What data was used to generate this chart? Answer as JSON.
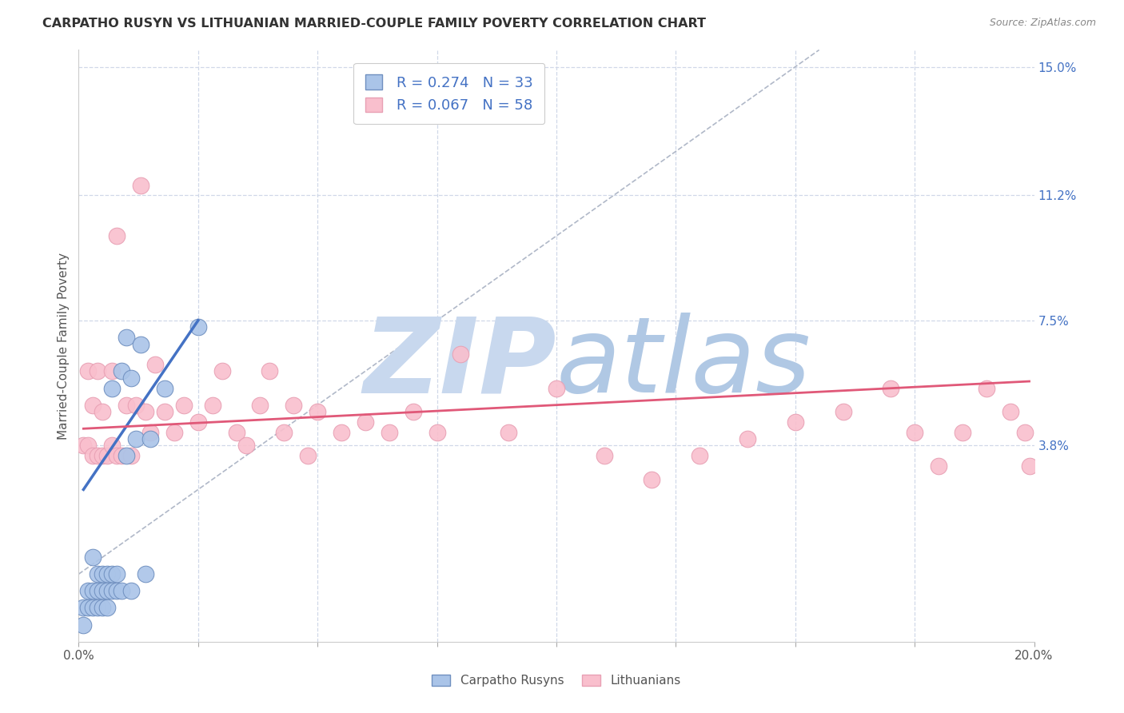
{
  "title": "CARPATHO RUSYN VS LITHUANIAN MARRIED-COUPLE FAMILY POVERTY CORRELATION CHART",
  "source": "Source: ZipAtlas.com",
  "ylabel": "Married-Couple Family Poverty",
  "xlim": [
    0.0,
    0.2
  ],
  "ylim": [
    -0.02,
    0.155
  ],
  "ytick_positions": [
    0.038,
    0.075,
    0.112,
    0.15
  ],
  "ytick_labels": [
    "3.8%",
    "7.5%",
    "11.2%",
    "15.0%"
  ],
  "color_rusyn": "#aac4e8",
  "color_lithuanian": "#f9bfcd",
  "color_rusyn_line": "#4472c4",
  "color_lithuanian_line": "#e05878",
  "watermark": "ZIPatlas",
  "watermark_color_zip": "#c5d9f0",
  "watermark_color_atlas": "#b8cfe8",
  "grid_color": "#d0d8e8",
  "rusyn_x": [
    0.001,
    0.001,
    0.002,
    0.002,
    0.003,
    0.003,
    0.003,
    0.004,
    0.004,
    0.004,
    0.005,
    0.005,
    0.005,
    0.006,
    0.006,
    0.006,
    0.007,
    0.007,
    0.007,
    0.008,
    0.008,
    0.009,
    0.009,
    0.01,
    0.01,
    0.011,
    0.011,
    0.012,
    0.013,
    0.014,
    0.015,
    0.018,
    0.025
  ],
  "rusyn_y": [
    -0.01,
    -0.015,
    -0.01,
    -0.005,
    -0.01,
    -0.005,
    0.005,
    -0.01,
    -0.005,
    0.0,
    -0.01,
    -0.005,
    0.0,
    -0.01,
    -0.005,
    0.0,
    -0.005,
    0.0,
    0.055,
    -0.005,
    0.0,
    -0.005,
    0.06,
    0.035,
    0.07,
    -0.005,
    0.058,
    0.04,
    0.068,
    0.0,
    0.04,
    0.055,
    0.073
  ],
  "lith_x": [
    0.001,
    0.002,
    0.002,
    0.003,
    0.003,
    0.004,
    0.004,
    0.005,
    0.005,
    0.006,
    0.007,
    0.007,
    0.008,
    0.008,
    0.009,
    0.01,
    0.011,
    0.012,
    0.013,
    0.014,
    0.015,
    0.016,
    0.018,
    0.02,
    0.022,
    0.025,
    0.028,
    0.03,
    0.033,
    0.035,
    0.038,
    0.04,
    0.043,
    0.045,
    0.048,
    0.05,
    0.055,
    0.06,
    0.065,
    0.07,
    0.075,
    0.08,
    0.09,
    0.1,
    0.11,
    0.12,
    0.13,
    0.14,
    0.15,
    0.16,
    0.17,
    0.175,
    0.18,
    0.185,
    0.19,
    0.195,
    0.198,
    0.199
  ],
  "lith_y": [
    0.038,
    0.038,
    0.06,
    0.035,
    0.05,
    0.035,
    0.06,
    0.035,
    0.048,
    0.035,
    0.06,
    0.038,
    0.035,
    0.1,
    0.035,
    0.05,
    0.035,
    0.05,
    0.115,
    0.048,
    0.042,
    0.062,
    0.048,
    0.042,
    0.05,
    0.045,
    0.05,
    0.06,
    0.042,
    0.038,
    0.05,
    0.06,
    0.042,
    0.05,
    0.035,
    0.048,
    0.042,
    0.045,
    0.042,
    0.048,
    0.042,
    0.065,
    0.042,
    0.055,
    0.035,
    0.028,
    0.035,
    0.04,
    0.045,
    0.048,
    0.055,
    0.042,
    0.032,
    0.042,
    0.055,
    0.048,
    0.042,
    0.032
  ],
  "rusyn_trend_x": [
    0.001,
    0.025
  ],
  "rusyn_trend_y": [
    0.025,
    0.075
  ],
  "lith_trend_x": [
    0.001,
    0.199
  ],
  "lith_trend_y": [
    0.043,
    0.057
  ]
}
